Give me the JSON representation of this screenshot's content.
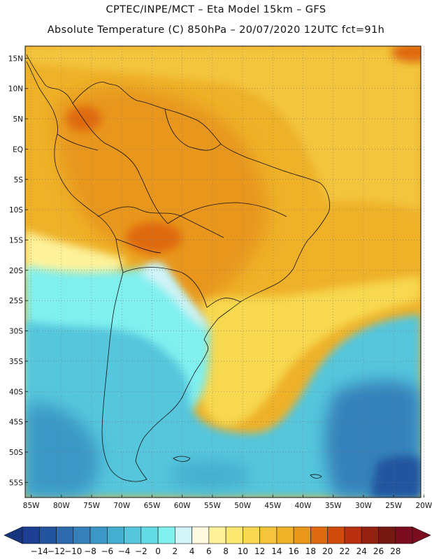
{
  "header": {
    "title_line1": "CPTEC/INPE/MCT –  Eta Model 15km – GFS",
    "title_line2": "Absolute Temperature (C) 850hPa – 20/07/2020 12UTC fct=91h"
  },
  "map": {
    "region": "South America",
    "variable": "Absolute Temperature (C)",
    "level": "850hPa",
    "lat_labels": [
      "15N",
      "10N",
      "5N",
      "EQ",
      "5S",
      "10S",
      "15S",
      "20S",
      "25S",
      "30S",
      "35S",
      "40S",
      "45S",
      "50S",
      "55S"
    ],
    "lat_values": [
      15,
      10,
      5,
      0,
      -5,
      -10,
      -15,
      -20,
      -25,
      -30,
      -35,
      -40,
      -45,
      -50,
      -55
    ],
    "lon_labels": [
      "85W",
      "80W",
      "75W",
      "70W",
      "65W",
      "60W",
      "55W",
      "50W",
      "45W",
      "40W",
      "35W",
      "30W",
      "25W",
      "20W"
    ],
    "lon_values": [
      -85,
      -80,
      -75,
      -70,
      -65,
      -60,
      -55,
      -50,
      -45,
      -40,
      -35,
      -30,
      -25,
      -20
    ],
    "lon_range": [
      -86,
      -20.5
    ],
    "lat_range": [
      -57.5,
      17
    ],
    "grid": "dotted"
  },
  "colorbar": {
    "labels": [
      "-14",
      "-12",
      "-10",
      "-8",
      "-6",
      "-4",
      "-2",
      "0",
      "2",
      "4",
      "6",
      "8",
      "10",
      "12",
      "14",
      "16",
      "18",
      "20",
      "22",
      "24",
      "26",
      "28"
    ],
    "colors": [
      "#1c3f94",
      "#23549f",
      "#2e6aac",
      "#3681bb",
      "#3b98c6",
      "#45aed0",
      "#55c6dc",
      "#62dbe6",
      "#80f0ef",
      "#d2f3f8",
      "#fff9e0",
      "#fdf29a",
      "#fbe870",
      "#f7d850",
      "#f3c43c",
      "#eeb128",
      "#e8961c",
      "#df6910",
      "#d14a0e",
      "#b8300f",
      "#962111",
      "#751812",
      "#7a0d20"
    ],
    "extends": "both"
  }
}
